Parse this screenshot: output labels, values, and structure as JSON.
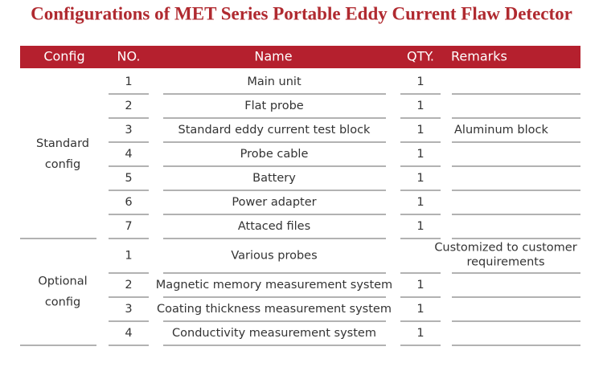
{
  "title": "Configurations of MET Series Portable Eddy Current Flaw Detector",
  "table": {
    "header": [
      "Config",
      "NO.",
      "Name",
      "QTY.",
      "Remarks"
    ],
    "groups": [
      {
        "config": [
          "Standard",
          "config"
        ],
        "rows": [
          {
            "no": "1",
            "name": "Main unit",
            "qty": "1"
          },
          {
            "no": "2",
            "name": "Flat probe",
            "qty": "1"
          },
          {
            "no": "3",
            "name": "Standard eddy current test block",
            "qty": "1",
            "remarks": [
              "Aluminum block"
            ]
          },
          {
            "no": "4",
            "name": "Probe cable",
            "qty": "1"
          },
          {
            "no": "5",
            "name": "Battery",
            "qty": "1"
          },
          {
            "no": "6",
            "name": "Power adapter",
            "qty": "1"
          },
          {
            "no": "7",
            "name": "Attaced files",
            "qty": "1"
          }
        ]
      },
      {
        "config": [
          "Optional",
          "config"
        ],
        "rows": [
          {
            "no": "1",
            "name": "Various probes",
            "remarks": [
              "Customized to customer",
              "requirements"
            ]
          },
          {
            "no": "2",
            "name": "Magnetic memory measurement system",
            "qty": "1"
          },
          {
            "no": "3",
            "name": "Coating thickness measurement system",
            "qty": "1"
          },
          {
            "no": "4",
            "name": "Conductivity measurement system",
            "qty": "1"
          }
        ]
      }
    ]
  }
}
